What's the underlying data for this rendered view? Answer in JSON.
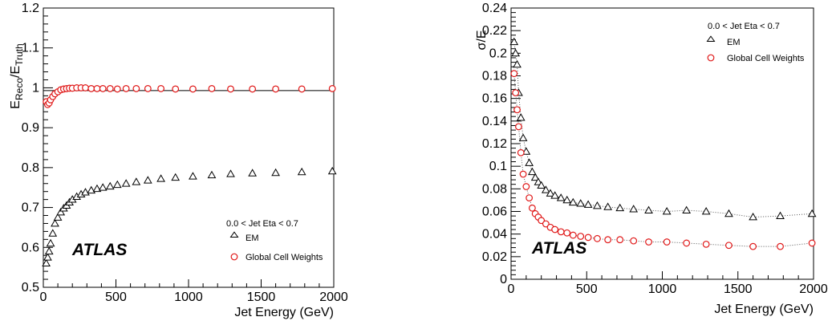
{
  "chart_data": [
    {
      "type": "scatter",
      "xlabel": "Jet Energy (GeV)",
      "ylabel": {
        "base": "E",
        "sub_num": "Reco",
        "sep": "/E",
        "sub_den": "Truth"
      },
      "xlim": [
        0,
        2000
      ],
      "ylim": [
        0.5,
        1.2
      ],
      "xticks": [
        0,
        500,
        1000,
        1500,
        2000
      ],
      "yticks": [
        0.5,
        0.6,
        0.7,
        0.8,
        0.9,
        1,
        1.1,
        1.2
      ],
      "ytick_labels": [
        "0.5",
        "0.6",
        "0.7",
        "0.8",
        "0.9",
        "1",
        "1.1",
        "1.2"
      ],
      "reference_line": 0.993,
      "legend_title": "0.0 < Jet Eta < 0.7",
      "legend_position": "bottom-right",
      "atlas_label": "ATLAS",
      "series": [
        {
          "name": "EM",
          "marker": "triangle",
          "color": "#000000",
          "x": [
            20,
            30,
            40,
            50,
            65,
            80,
            100,
            120,
            140,
            160,
            180,
            200,
            230,
            260,
            290,
            330,
            370,
            410,
            460,
            510,
            570,
            640,
            720,
            810,
            910,
            1030,
            1160,
            1290,
            1440,
            1600,
            1780,
            1990
          ],
          "y": [
            0.56,
            0.575,
            0.59,
            0.61,
            0.635,
            0.66,
            0.675,
            0.688,
            0.698,
            0.705,
            0.713,
            0.72,
            0.727,
            0.733,
            0.738,
            0.743,
            0.747,
            0.75,
            0.753,
            0.757,
            0.76,
            0.764,
            0.768,
            0.772,
            0.775,
            0.778,
            0.781,
            0.784,
            0.786,
            0.787,
            0.789,
            0.791
          ]
        },
        {
          "name": "Global Cell Weights",
          "marker": "circle",
          "color": "#e01818",
          "x": [
            20,
            30,
            40,
            50,
            65,
            80,
            100,
            120,
            140,
            160,
            180,
            200,
            230,
            260,
            290,
            330,
            370,
            410,
            460,
            510,
            570,
            640,
            720,
            810,
            910,
            1030,
            1160,
            1290,
            1440,
            1600,
            1780,
            1990
          ],
          "y": [
            0.965,
            0.958,
            0.962,
            0.97,
            0.978,
            0.985,
            0.99,
            0.995,
            0.997,
            0.998,
            0.999,
            0.999,
            1.0,
            1.0,
            1.0,
            0.998,
            0.998,
            0.998,
            0.998,
            0.997,
            0.998,
            0.998,
            0.998,
            0.998,
            0.997,
            0.997,
            0.998,
            0.997,
            0.997,
            0.997,
            0.997,
            0.998
          ]
        }
      ]
    },
    {
      "type": "scatter",
      "xlabel": "Jet Energy (GeV)",
      "ylabel": "σ/E",
      "xlim": [
        0,
        2000
      ],
      "ylim": [
        0,
        0.24
      ],
      "xticks": [
        0,
        500,
        1000,
        1500,
        2000
      ],
      "yticks": [
        0,
        0.02,
        0.04,
        0.06,
        0.08,
        0.1,
        0.12,
        0.14,
        0.16,
        0.18,
        0.2,
        0.22,
        0.24
      ],
      "ytick_labels": [
        "0",
        "0.02",
        "0.04",
        "0.06",
        "0.08",
        "0.1",
        "0.12",
        "0.14",
        "0.16",
        "0.18",
        "0.2",
        "0.22",
        "0.24"
      ],
      "fit_curves": "dotted",
      "legend_title": "0.0 < Jet Eta < 0.7",
      "legend_position": "top-right",
      "atlas_label": "ATLAS",
      "series": [
        {
          "name": "EM",
          "marker": "triangle",
          "color": "#000000",
          "x": [
            20,
            30,
            40,
            50,
            65,
            80,
            100,
            120,
            140,
            160,
            180,
            200,
            230,
            260,
            290,
            330,
            370,
            410,
            460,
            510,
            570,
            640,
            720,
            810,
            910,
            1030,
            1160,
            1290,
            1440,
            1600,
            1780,
            1990
          ],
          "y": [
            0.21,
            0.2,
            0.19,
            0.165,
            0.143,
            0.125,
            0.113,
            0.103,
            0.095,
            0.09,
            0.086,
            0.083,
            0.079,
            0.076,
            0.074,
            0.072,
            0.07,
            0.068,
            0.067,
            0.066,
            0.065,
            0.064,
            0.063,
            0.062,
            0.061,
            0.06,
            0.061,
            0.06,
            0.058,
            0.055,
            0.056,
            0.058
          ]
        },
        {
          "name": "Global Cell Weights",
          "marker": "circle",
          "color": "#e01818",
          "x": [
            20,
            30,
            40,
            50,
            65,
            80,
            100,
            120,
            140,
            160,
            180,
            200,
            230,
            260,
            290,
            330,
            370,
            410,
            460,
            510,
            570,
            640,
            720,
            810,
            910,
            1030,
            1160,
            1290,
            1440,
            1600,
            1780,
            1990
          ],
          "y": [
            0.182,
            0.165,
            0.15,
            0.135,
            0.112,
            0.093,
            0.082,
            0.072,
            0.063,
            0.058,
            0.055,
            0.052,
            0.049,
            0.046,
            0.044,
            0.042,
            0.041,
            0.039,
            0.038,
            0.037,
            0.036,
            0.035,
            0.035,
            0.034,
            0.033,
            0.033,
            0.032,
            0.031,
            0.03,
            0.029,
            0.029,
            0.032
          ]
        }
      ]
    }
  ]
}
